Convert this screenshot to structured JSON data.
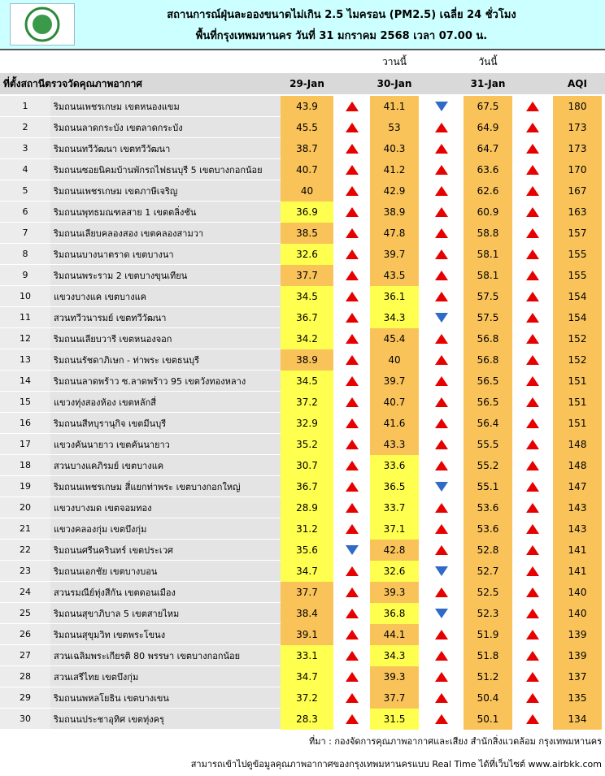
{
  "header": {
    "title": "สถานการณ์ฝุ่นละอองขนาดไม่เกิน 2.5 ไมครอน (PM2.5) เฉลี่ย 24 ชั่วโมง",
    "subtitle": "พื้นที่กรุงเทพมหานคร วันที่ 31 มกราคม 2568 เวลา 07.00 น."
  },
  "table": {
    "day_labels": [
      "วานนี้",
      "วันนี้"
    ],
    "columns": [
      "ที่ตั้งสถานีตรวจวัดคุณภาพอากาศ",
      "29-Jan",
      "30-Jan",
      "31-Jan",
      "AQI"
    ],
    "up_color": "#e60000",
    "down_color": "#2f6bc5",
    "aqi_color": "#f9c35a",
    "rows": [
      {
        "no": 1,
        "station": "ริมถนนเพชรเกษม เขตหนองแขม",
        "pm": [
          43.9,
          41.1,
          67.5
        ],
        "trend": [
          "up",
          "down",
          "up"
        ],
        "aqi": 180,
        "colors": [
          "#f9c35a",
          "#f9c35a",
          "#f9c35a"
        ]
      },
      {
        "no": 2,
        "station": "ริมถนนลาดกระบัง เขตลาดกระบัง",
        "pm": [
          45.5,
          53,
          64.9
        ],
        "trend": [
          "up",
          "up",
          "up"
        ],
        "aqi": 173,
        "colors": [
          "#f9c35a",
          "#f9c35a",
          "#f9c35a"
        ]
      },
      {
        "no": 3,
        "station": "ริมถนนทวีวัฒนา เขตทวีวัฒนา",
        "pm": [
          38.7,
          40.3,
          64.7
        ],
        "trend": [
          "up",
          "up",
          "up"
        ],
        "aqi": 173,
        "colors": [
          "#f9c35a",
          "#f9c35a",
          "#f9c35a"
        ]
      },
      {
        "no": 4,
        "station": "ริมถนนซอยนิคมบ้านพักรถไฟธนบุรี 5 เขตบางกอกน้อย",
        "pm": [
          40.7,
          41.2,
          63.6
        ],
        "trend": [
          "up",
          "up",
          "up"
        ],
        "aqi": 170,
        "colors": [
          "#f9c35a",
          "#f9c35a",
          "#f9c35a"
        ]
      },
      {
        "no": 5,
        "station": "ริมถนนเพชรเกษม เขตภาษีเจริญ",
        "pm": [
          40,
          42.9,
          62.6
        ],
        "trend": [
          "up",
          "up",
          "up"
        ],
        "aqi": 167,
        "colors": [
          "#f9c35a",
          "#f9c35a",
          "#f9c35a"
        ]
      },
      {
        "no": 6,
        "station": "ริมถนนพุทธมณฑลสาย 1 เขตตลิ่งชัน",
        "pm": [
          36.9,
          38.9,
          60.9
        ],
        "trend": [
          "up",
          "up",
          "up"
        ],
        "aqi": 163,
        "colors": [
          "#ffff4f",
          "#f9c35a",
          "#f9c35a"
        ]
      },
      {
        "no": 7,
        "station": "ริมถนนเลียบคลองสอง เขตคลองสามวา",
        "pm": [
          38.5,
          47.8,
          58.8
        ],
        "trend": [
          "up",
          "up",
          "up"
        ],
        "aqi": 157,
        "colors": [
          "#f9c35a",
          "#f9c35a",
          "#f9c35a"
        ]
      },
      {
        "no": 8,
        "station": "ริมถนนบางนาตราด เขตบางนา",
        "pm": [
          32.6,
          39.7,
          58.1
        ],
        "trend": [
          "up",
          "up",
          "up"
        ],
        "aqi": 155,
        "colors": [
          "#ffff4f",
          "#f9c35a",
          "#f9c35a"
        ]
      },
      {
        "no": 9,
        "station": "ริมถนนพระราม 2 เขตบางขุนเทียน",
        "pm": [
          37.7,
          43.5,
          58.1
        ],
        "trend": [
          "up",
          "up",
          "up"
        ],
        "aqi": 155,
        "colors": [
          "#f9c35a",
          "#f9c35a",
          "#f9c35a"
        ]
      },
      {
        "no": 10,
        "station": "แขวงบางแค เขตบางแค",
        "pm": [
          34.5,
          36.1,
          57.5
        ],
        "trend": [
          "up",
          "up",
          "up"
        ],
        "aqi": 154,
        "colors": [
          "#ffff4f",
          "#ffff4f",
          "#f9c35a"
        ]
      },
      {
        "no": 11,
        "station": "สวนทวีวนารมย์ เขตทวีวัฒนา",
        "pm": [
          36.7,
          34.3,
          57.5
        ],
        "trend": [
          "up",
          "down",
          "up"
        ],
        "aqi": 154,
        "colors": [
          "#ffff4f",
          "#ffff4f",
          "#f9c35a"
        ]
      },
      {
        "no": 12,
        "station": "ริมถนนเลียบวารี เขตหนองจอก",
        "pm": [
          34.2,
          45.4,
          56.8
        ],
        "trend": [
          "up",
          "up",
          "up"
        ],
        "aqi": 152,
        "colors": [
          "#ffff4f",
          "#f9c35a",
          "#f9c35a"
        ]
      },
      {
        "no": 13,
        "station": "ริมถนนรัชดาภิเษก - ท่าพระ เขตธนบุรี",
        "pm": [
          38.9,
          40,
          56.8
        ],
        "trend": [
          "up",
          "up",
          "up"
        ],
        "aqi": 152,
        "colors": [
          "#f9c35a",
          "#f9c35a",
          "#f9c35a"
        ]
      },
      {
        "no": 14,
        "station": "ริมถนนลาดพร้าว ซ.ลาดพร้าว 95 เขตวังทองหลาง",
        "pm": [
          34.5,
          39.7,
          56.5
        ],
        "trend": [
          "up",
          "up",
          "up"
        ],
        "aqi": 151,
        "colors": [
          "#ffff4f",
          "#f9c35a",
          "#f9c35a"
        ]
      },
      {
        "no": 15,
        "station": "แขวงทุ่งสองห้อง เขตหลักสี่",
        "pm": [
          37.2,
          40.7,
          56.5
        ],
        "trend": [
          "up",
          "up",
          "up"
        ],
        "aqi": 151,
        "colors": [
          "#ffff4f",
          "#f9c35a",
          "#f9c35a"
        ]
      },
      {
        "no": 16,
        "station": "ริมถนนสีหบุรานุกิจ เขตมีนบุรี",
        "pm": [
          32.9,
          41.6,
          56.4
        ],
        "trend": [
          "up",
          "up",
          "up"
        ],
        "aqi": 151,
        "colors": [
          "#ffff4f",
          "#f9c35a",
          "#f9c35a"
        ]
      },
      {
        "no": 17,
        "station": "แขวงคันนายาว เขตคันนายาว",
        "pm": [
          35.2,
          43.3,
          55.5
        ],
        "trend": [
          "up",
          "up",
          "up"
        ],
        "aqi": 148,
        "colors": [
          "#ffff4f",
          "#f9c35a",
          "#f9c35a"
        ]
      },
      {
        "no": 18,
        "station": "สวนบางแคภิรมย์ เขตบางแค",
        "pm": [
          30.7,
          33.6,
          55.2
        ],
        "trend": [
          "up",
          "up",
          "up"
        ],
        "aqi": 148,
        "colors": [
          "#ffff4f",
          "#ffff4f",
          "#f9c35a"
        ]
      },
      {
        "no": 19,
        "station": "ริมถนนเพชรเกษม สี่แยกท่าพระ เขตบางกอกใหญ่",
        "pm": [
          36.7,
          36.5,
          55.1
        ],
        "trend": [
          "up",
          "down",
          "up"
        ],
        "aqi": 147,
        "colors": [
          "#ffff4f",
          "#ffff4f",
          "#f9c35a"
        ]
      },
      {
        "no": 20,
        "station": "แขวงบางมด เขตจอมทอง",
        "pm": [
          28.9,
          33.7,
          53.6
        ],
        "trend": [
          "up",
          "up",
          "up"
        ],
        "aqi": 143,
        "colors": [
          "#ffff4f",
          "#ffff4f",
          "#f9c35a"
        ]
      },
      {
        "no": 21,
        "station": "แขวงคลองกุ่ม เขตบึงกุ่ม",
        "pm": [
          31.2,
          37.1,
          53.6
        ],
        "trend": [
          "up",
          "up",
          "up"
        ],
        "aqi": 143,
        "colors": [
          "#ffff4f",
          "#ffff4f",
          "#f9c35a"
        ]
      },
      {
        "no": 22,
        "station": "ริมถนนศรีนครินทร์ เขตประเวศ",
        "pm": [
          35.6,
          42.8,
          52.8
        ],
        "trend": [
          "down",
          "up",
          "up"
        ],
        "aqi": 141,
        "colors": [
          "#ffff4f",
          "#f9c35a",
          "#f9c35a"
        ]
      },
      {
        "no": 23,
        "station": "ริมถนนเอกชัย เขตบางบอน",
        "pm": [
          34.7,
          32.6,
          52.7
        ],
        "trend": [
          "up",
          "down",
          "up"
        ],
        "aqi": 141,
        "colors": [
          "#ffff4f",
          "#ffff4f",
          "#f9c35a"
        ]
      },
      {
        "no": 24,
        "station": "สวนรมณีย์ทุ่งสีกัน เขตดอนเมือง",
        "pm": [
          37.7,
          39.3,
          52.5
        ],
        "trend": [
          "up",
          "up",
          "up"
        ],
        "aqi": 140,
        "colors": [
          "#f9c35a",
          "#f9c35a",
          "#f9c35a"
        ]
      },
      {
        "no": 25,
        "station": "ริมถนนสุขาภิบาล 5 เขตสายไหม",
        "pm": [
          38.4,
          36.8,
          52.3
        ],
        "trend": [
          "up",
          "down",
          "up"
        ],
        "aqi": 140,
        "colors": [
          "#f9c35a",
          "#ffff4f",
          "#f9c35a"
        ]
      },
      {
        "no": 26,
        "station": "ริมถนนสุขุมวิท เขตพระโขนง",
        "pm": [
          39.1,
          44.1,
          51.9
        ],
        "trend": [
          "up",
          "up",
          "up"
        ],
        "aqi": 139,
        "colors": [
          "#f9c35a",
          "#f9c35a",
          "#f9c35a"
        ]
      },
      {
        "no": 27,
        "station": "สวนเฉลิมพระเกียรติ 80 พรรษา  เขตบางกอกน้อย",
        "pm": [
          33.1,
          34.3,
          51.8
        ],
        "trend": [
          "up",
          "up",
          "up"
        ],
        "aqi": 139,
        "colors": [
          "#ffff4f",
          "#ffff4f",
          "#f9c35a"
        ]
      },
      {
        "no": 28,
        "station": "สวนเสรีไทย เขตบึงกุ่ม",
        "pm": [
          34.7,
          39.3,
          51.2
        ],
        "trend": [
          "up",
          "up",
          "up"
        ],
        "aqi": 137,
        "colors": [
          "#ffff4f",
          "#f9c35a",
          "#f9c35a"
        ]
      },
      {
        "no": 29,
        "station": "ริมถนนพหลโยธิน เขตบางเขน",
        "pm": [
          37.2,
          37.7,
          50.4
        ],
        "trend": [
          "up",
          "up",
          "up"
        ],
        "aqi": 135,
        "colors": [
          "#ffff4f",
          "#f9c35a",
          "#f9c35a"
        ]
      },
      {
        "no": 30,
        "station": "ริมถนนประชาอุทิศ เขตทุ่งครุ",
        "pm": [
          28.3,
          31.5,
          50.1
        ],
        "trend": [
          "up",
          "up",
          "up"
        ],
        "aqi": 134,
        "colors": [
          "#ffff4f",
          "#ffff4f",
          "#f9c35a"
        ]
      }
    ]
  },
  "footer": {
    "source": "ที่มา : กองจัดการคุณภาพอากาศและเสียง สำนักสิ่งแวดล้อม กรุงเทพมหานคร",
    "link": "สามารถเข้าไปดูข้อมูลคุณภาพอากาศของกรุงเทพมหานครแบบ Real Time ได้ที่เว็บไซต์ www.airbkk.com"
  }
}
